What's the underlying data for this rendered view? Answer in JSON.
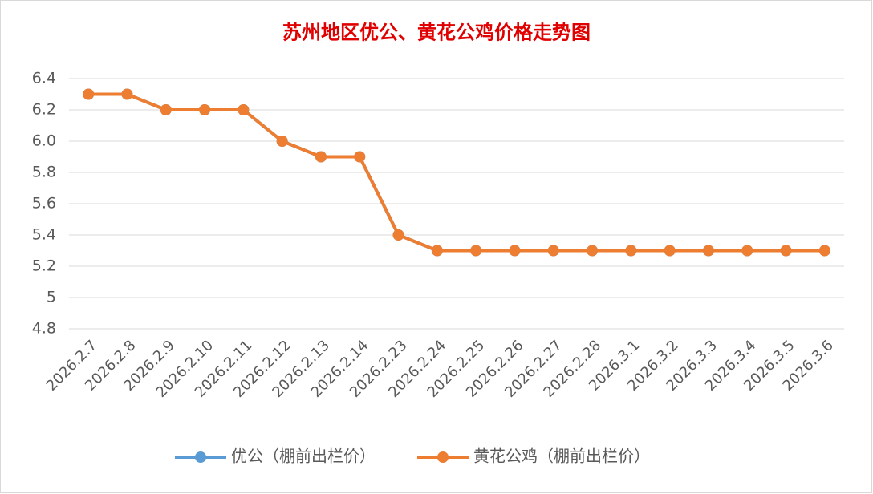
{
  "chart_data": {
    "type": "line",
    "title": "苏州地区优公、黄花公鸡价格走势图",
    "categories": [
      "2026.2.7",
      "2026.2.8",
      "2026.2.9",
      "2026.2.10",
      "2026.2.11",
      "2026.2.12",
      "2026.2.13",
      "2026.2.14",
      "2026.2.23",
      "2026.2.24",
      "2026.2.25",
      "2026.2.26",
      "2026.2.27",
      "2026.2.28",
      "2026.3.1",
      "2026.3.2",
      "2026.3.3",
      "2026.3.4",
      "2026.3.5",
      "2026.3.6"
    ],
    "series": [
      {
        "name": "优公（棚前出栏价）",
        "color": "#5b9bd5",
        "values": [
          6.3,
          6.3,
          6.2,
          6.2,
          6.2,
          6.0,
          5.9,
          5.9,
          5.4,
          5.3,
          5.3,
          5.3,
          5.3,
          5.3,
          5.3,
          5.3,
          5.3,
          5.3,
          5.3,
          5.3
        ]
      },
      {
        "name": "黄花公鸡（棚前出栏价）",
        "color": "#ed7d31",
        "values": [
          6.3,
          6.3,
          6.2,
          6.2,
          6.2,
          6.0,
          5.9,
          5.9,
          5.4,
          5.3,
          5.3,
          5.3,
          5.3,
          5.3,
          5.3,
          5.3,
          5.3,
          5.3,
          5.3,
          5.3
        ]
      }
    ],
    "ylim": [
      4.8,
      6.4
    ],
    "yticks": [
      4.8,
      5.0,
      5.2,
      5.4,
      5.6,
      5.8,
      {
        "value": 6,
        "label": "6.0"
      },
      6.2,
      6.4
    ],
    "grid": true,
    "legend": "bottom"
  }
}
